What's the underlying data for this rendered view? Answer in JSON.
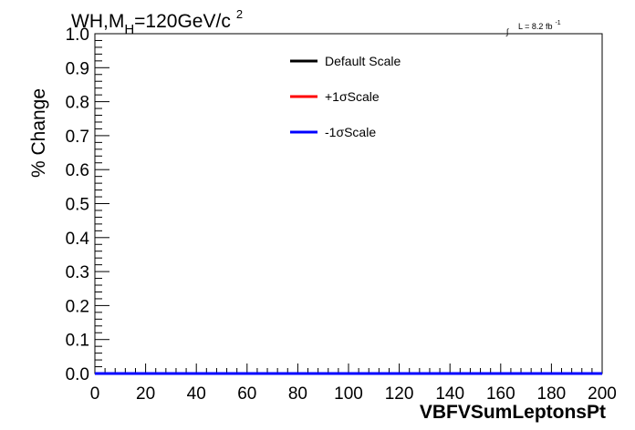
{
  "chart_data": {
    "type": "line",
    "title": {
      "main": "WH,M",
      "subscript": "H",
      "rest": "=120GeV/c",
      "superscript": "2"
    },
    "luminosity": {
      "integral_symbol": "∫",
      "text": "L = 8.2 fb",
      "superscript": "-1"
    },
    "xlabel": "VBFVSumLeptonsPt",
    "ylabel": "% Change",
    "xlim": [
      0,
      200
    ],
    "ylim": [
      0,
      1
    ],
    "x_ticks": [
      0,
      20,
      40,
      60,
      80,
      100,
      120,
      140,
      160,
      180,
      200
    ],
    "x_tick_labels": [
      "0",
      "20",
      "40",
      "60",
      "80",
      "100",
      "120",
      "140",
      "160",
      "180",
      "200"
    ],
    "y_ticks": [
      0,
      0.1,
      0.2,
      0.3,
      0.4,
      0.5,
      0.6,
      0.7,
      0.8,
      0.9,
      1.0
    ],
    "y_tick_labels": [
      "0.0",
      "0.1",
      "0.2",
      "0.3",
      "0.4",
      "0.5",
      "0.6",
      "0.7",
      "0.8",
      "0.9",
      "1.0"
    ],
    "grid": false,
    "legend_position": "top-center",
    "series": [
      {
        "name": "Default Scale",
        "color": "#000000",
        "x": [
          0,
          200
        ],
        "y": [
          0,
          0
        ]
      },
      {
        "name": "+1σScale",
        "color": "#ff0000",
        "x": [
          0,
          200
        ],
        "y": [
          0,
          0
        ]
      },
      {
        "name": "-1σScale",
        "color": "#0000ff",
        "x": [
          0,
          200
        ],
        "y": [
          0,
          0
        ]
      }
    ]
  }
}
